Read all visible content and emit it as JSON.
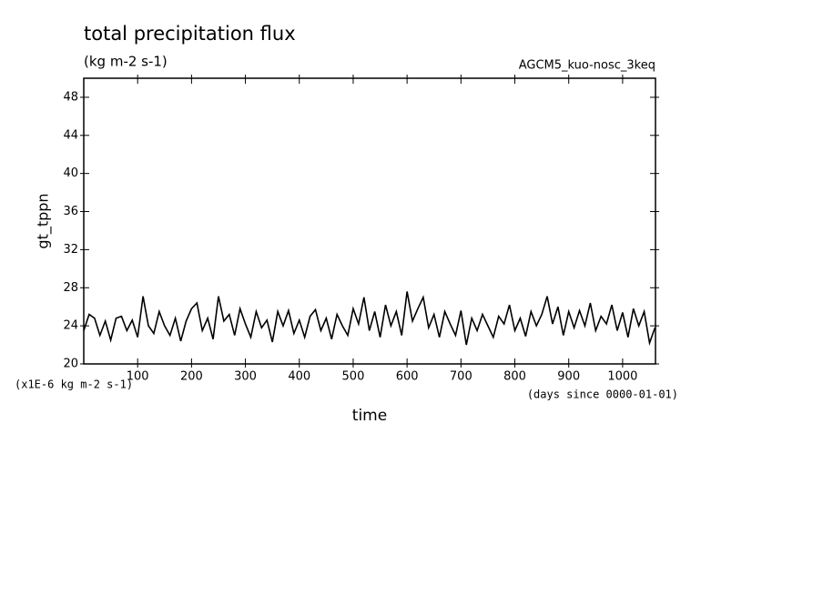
{
  "chart_data": {
    "type": "line",
    "title": "total precipitation flux",
    "subtitle": "(kg m-2 s-1)",
    "annotation": "AGCM5_kuo-nosc_3keq",
    "y_label": "gt_tppn",
    "y_unit": "(x1E-6 kg m-2 s-1)",
    "x_label": "time",
    "x_unit": "(days since 0000-01-01)",
    "xlim": [
      0,
      1061
    ],
    "ylim": [
      20,
      50
    ],
    "xticks": [
      100,
      200,
      300,
      400,
      500,
      600,
      700,
      800,
      900,
      1000
    ],
    "yticks": [
      20,
      24,
      28,
      32,
      36,
      40,
      44,
      48
    ],
    "series": [
      {
        "color": "#000000",
        "x": [
          0,
          10,
          20,
          30,
          40,
          50,
          60,
          70,
          80,
          90,
          100,
          110,
          120,
          130,
          140,
          150,
          160,
          170,
          180,
          190,
          200,
          210,
          220,
          230,
          240,
          250,
          260,
          270,
          280,
          290,
          300,
          310,
          320,
          330,
          340,
          350,
          360,
          370,
          380,
          390,
          400,
          410,
          420,
          430,
          440,
          450,
          460,
          470,
          480,
          490,
          500,
          510,
          520,
          530,
          540,
          550,
          560,
          570,
          580,
          590,
          600,
          610,
          620,
          630,
          640,
          650,
          660,
          670,
          680,
          690,
          700,
          710,
          720,
          730,
          740,
          750,
          760,
          770,
          780,
          790,
          800,
          810,
          820,
          830,
          840,
          850,
          860,
          870,
          880,
          890,
          900,
          910,
          920,
          930,
          940,
          950,
          960,
          970,
          980,
          990,
          1000,
          1010,
          1020,
          1030,
          1040,
          1050,
          1060
        ],
        "values": [
          23.5,
          25.2,
          24.8,
          23.0,
          24.5,
          22.5,
          24.8,
          25.0,
          23.5,
          24.6,
          22.8,
          27.1,
          24.0,
          23.2,
          25.5,
          24.0,
          23.0,
          24.8,
          22.4,
          24.5,
          25.8,
          26.4,
          23.5,
          24.8,
          22.6,
          27.1,
          24.5,
          25.2,
          23.0,
          25.8,
          24.2,
          22.8,
          25.5,
          23.8,
          24.6,
          22.3,
          25.5,
          24.0,
          25.6,
          23.2,
          24.6,
          22.8,
          25.0,
          25.7,
          23.5,
          24.8,
          22.6,
          25.2,
          24.0,
          23.0,
          25.8,
          24.2,
          27.0,
          23.5,
          25.5,
          22.8,
          26.2,
          24.0,
          25.5,
          23.0,
          27.6,
          24.5,
          25.8,
          27.0,
          23.8,
          25.2,
          22.8,
          25.5,
          24.2,
          23.0,
          25.6,
          22.0,
          24.8,
          23.5,
          25.2,
          24.0,
          22.8,
          25.0,
          24.2,
          26.2,
          23.5,
          24.8,
          22.9,
          25.5,
          24.0,
          25.2,
          27.1,
          24.2,
          26.0,
          23.0,
          25.5,
          23.8,
          25.6,
          24.0,
          26.4,
          23.5,
          25.0,
          24.2,
          26.2,
          23.5,
          25.4,
          22.8,
          25.8,
          24.0,
          25.5,
          22.2,
          23.8
        ]
      }
    ]
  }
}
